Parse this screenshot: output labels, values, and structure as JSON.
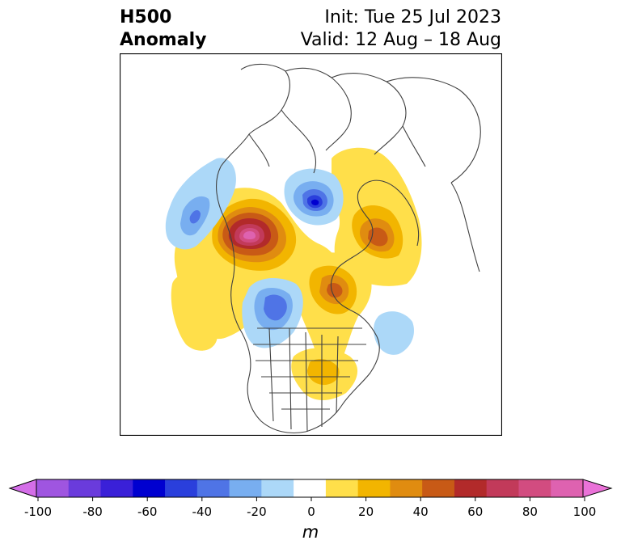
{
  "title": {
    "left_line1": "H500",
    "left_line2": "Anomaly",
    "right_line1": "Init: Tue 25 Jul 2023",
    "right_line2": "Valid: 12 Aug – 18 Aug"
  },
  "colorbar": {
    "units": "m",
    "tick_labels": [
      "-100",
      "-80",
      "-60",
      "-40",
      "-20",
      "0",
      "20",
      "40",
      "60",
      "80",
      "100"
    ],
    "colors": [
      "#d46ee8",
      "#9f55e0",
      "#6a3bdc",
      "#3a20d8",
      "#0000d0",
      "#2a3fdc",
      "#4f74e6",
      "#78aef0",
      "#acd8f8",
      "#ffffff",
      "#ffdf4a",
      "#f2b500",
      "#e08c10",
      "#c85a16",
      "#b22a2a",
      "#c23a5a",
      "#d24c80",
      "#de62b0",
      "#ea72d8"
    ],
    "min": -100,
    "max": 100,
    "step": 10
  }
}
